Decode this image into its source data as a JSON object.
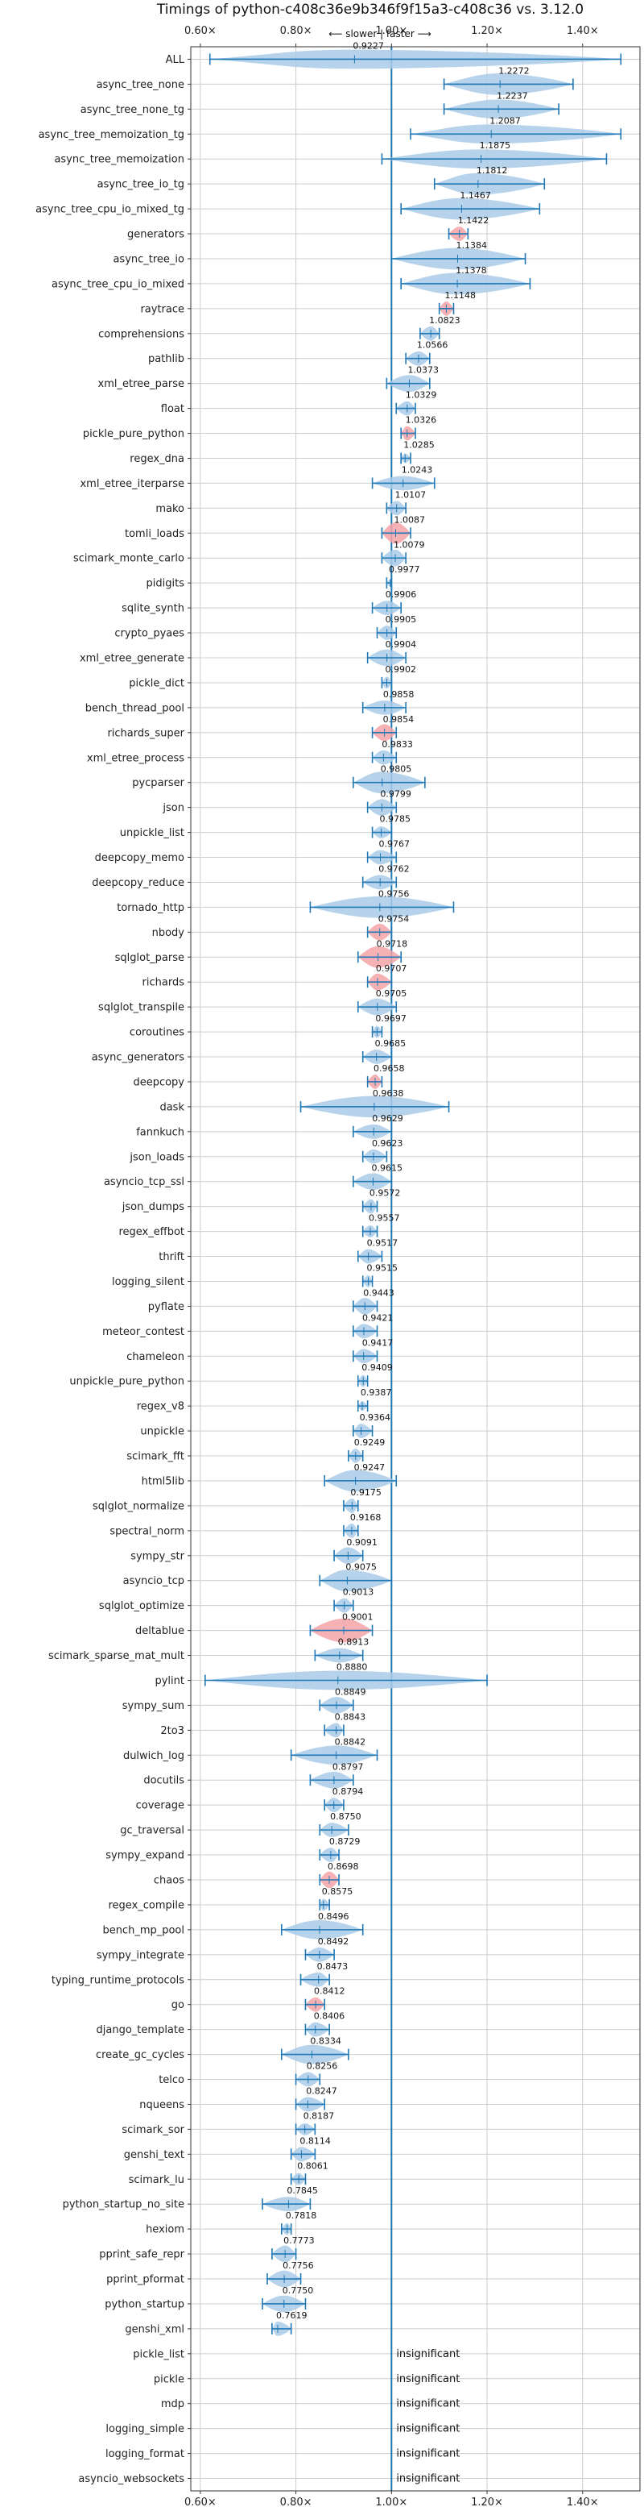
{
  "chart_data": {
    "type": "violin",
    "title": "Timings of python-c408c36e9b346f9f15a3-c408c36 vs. 3.12.0",
    "subtitle": "⟵ slower | faster ⟶",
    "x_ticks": [
      "0.60×",
      "0.80×",
      "1.00×",
      "1.20×",
      "1.40×"
    ],
    "x_tick_values": [
      0.6,
      0.8,
      1.0,
      1.2,
      1.4
    ],
    "xlim": [
      0.58,
      1.52
    ],
    "reference_line": 1.0,
    "grid": true,
    "insignificant_text": "insignificant",
    "colors": {
      "violin_normal": "#a9cbe8",
      "violin_slow": "#f4a3a8",
      "whisker": "#1f77b4",
      "refline": "#1f77b4",
      "grid": "#cccccc"
    },
    "series": [
      {
        "name": "ALL",
        "value": 0.9227,
        "label": "0.9227",
        "min": 0.62,
        "max": 1.48,
        "width": 0.8,
        "slower": false
      },
      {
        "name": "async_tree_none",
        "value": 1.2272,
        "label": "1.2272",
        "min": 1.11,
        "max": 1.38,
        "width": 0.9,
        "slower": false
      },
      {
        "name": "async_tree_none_tg",
        "value": 1.2237,
        "label": "1.2237",
        "min": 1.11,
        "max": 1.35,
        "width": 0.8,
        "slower": false
      },
      {
        "name": "async_tree_memoization_tg",
        "value": 1.2087,
        "label": "1.2087",
        "min": 1.04,
        "max": 1.48,
        "width": 0.8,
        "slower": false
      },
      {
        "name": "async_tree_memoization",
        "value": 1.1875,
        "label": "1.1875",
        "min": 0.98,
        "max": 1.45,
        "width": 0.8,
        "slower": false
      },
      {
        "name": "async_tree_io_tg",
        "value": 1.1812,
        "label": "1.1812",
        "min": 1.09,
        "max": 1.32,
        "width": 0.9,
        "slower": false
      },
      {
        "name": "async_tree_cpu_io_mixed_tg",
        "value": 1.1467,
        "label": "1.1467",
        "min": 1.02,
        "max": 1.31,
        "width": 0.9,
        "slower": false
      },
      {
        "name": "generators",
        "value": 1.1422,
        "label": "1.1422",
        "min": 1.12,
        "max": 1.16,
        "width": 0.6,
        "slower": true
      },
      {
        "name": "async_tree_io",
        "value": 1.1384,
        "label": "1.1384",
        "min": 1.0,
        "max": 1.28,
        "width": 0.9,
        "slower": false
      },
      {
        "name": "async_tree_cpu_io_mixed",
        "value": 1.1378,
        "label": "1.1378",
        "min": 1.02,
        "max": 1.29,
        "width": 0.9,
        "slower": false
      },
      {
        "name": "raytrace",
        "value": 1.1148,
        "label": "1.1148",
        "min": 1.1,
        "max": 1.13,
        "width": 0.6,
        "slower": true
      },
      {
        "name": "comprehensions",
        "value": 1.0823,
        "label": "1.0823",
        "min": 1.06,
        "max": 1.1,
        "width": 0.6,
        "slower": false
      },
      {
        "name": "pathlib",
        "value": 1.0566,
        "label": "1.0566",
        "min": 1.03,
        "max": 1.08,
        "width": 0.6,
        "slower": false
      },
      {
        "name": "xml_etree_parse",
        "value": 1.0373,
        "label": "1.0373",
        "min": 0.99,
        "max": 1.08,
        "width": 0.7,
        "slower": false
      },
      {
        "name": "float",
        "value": 1.0329,
        "label": "1.0329",
        "min": 1.01,
        "max": 1.05,
        "width": 0.6,
        "slower": false
      },
      {
        "name": "pickle_pure_python",
        "value": 1.0326,
        "label": "1.0326",
        "min": 1.02,
        "max": 1.05,
        "width": 0.6,
        "slower": true
      },
      {
        "name": "regex_dna",
        "value": 1.0285,
        "label": "1.0285",
        "min": 1.02,
        "max": 1.04,
        "width": 0.4,
        "slower": false
      },
      {
        "name": "xml_etree_iterparse",
        "value": 1.0243,
        "label": "1.0243",
        "min": 0.96,
        "max": 1.09,
        "width": 0.6,
        "slower": false
      },
      {
        "name": "mako",
        "value": 1.0107,
        "label": "1.0107",
        "min": 0.99,
        "max": 1.03,
        "width": 0.6,
        "slower": false
      },
      {
        "name": "tomli_loads",
        "value": 1.0087,
        "label": "1.0087",
        "min": 0.98,
        "max": 1.04,
        "width": 0.9,
        "slower": true
      },
      {
        "name": "scimark_monte_carlo",
        "value": 1.0079,
        "label": "1.0079",
        "min": 0.98,
        "max": 1.03,
        "width": 0.7,
        "slower": false
      },
      {
        "name": "pidigits",
        "value": 0.9977,
        "label": "0.9977",
        "min": 0.99,
        "max": 1.0,
        "width": 0.3,
        "slower": false
      },
      {
        "name": "sqlite_synth",
        "value": 0.9906,
        "label": "0.9906",
        "min": 0.96,
        "max": 1.02,
        "width": 0.6,
        "slower": false
      },
      {
        "name": "crypto_pyaes",
        "value": 0.9905,
        "label": "0.9905",
        "min": 0.97,
        "max": 1.01,
        "width": 0.6,
        "slower": false
      },
      {
        "name": "xml_etree_generate",
        "value": 0.9904,
        "label": "0.9904",
        "min": 0.95,
        "max": 1.03,
        "width": 0.7,
        "slower": false
      },
      {
        "name": "pickle_dict",
        "value": 0.9902,
        "label": "0.9902",
        "min": 0.98,
        "max": 1.0,
        "width": 0.5,
        "slower": false
      },
      {
        "name": "bench_thread_pool",
        "value": 0.9858,
        "label": "0.9858",
        "min": 0.94,
        "max": 1.03,
        "width": 0.6,
        "slower": false
      },
      {
        "name": "richards_super",
        "value": 0.9854,
        "label": "0.9854",
        "min": 0.96,
        "max": 1.01,
        "width": 0.7,
        "slower": true
      },
      {
        "name": "xml_etree_process",
        "value": 0.9833,
        "label": "0.9833",
        "min": 0.96,
        "max": 1.01,
        "width": 0.6,
        "slower": false
      },
      {
        "name": "pycparser",
        "value": 0.9805,
        "label": "0.9805",
        "min": 0.92,
        "max": 1.07,
        "width": 0.9,
        "slower": false
      },
      {
        "name": "json",
        "value": 0.9799,
        "label": "0.9799",
        "min": 0.95,
        "max": 1.01,
        "width": 0.7,
        "slower": false
      },
      {
        "name": "unpickle_list",
        "value": 0.9785,
        "label": "0.9785",
        "min": 0.96,
        "max": 1.0,
        "width": 0.5,
        "slower": false
      },
      {
        "name": "deepcopy_memo",
        "value": 0.9767,
        "label": "0.9767",
        "min": 0.95,
        "max": 1.01,
        "width": 0.6,
        "slower": false
      },
      {
        "name": "deepcopy_reduce",
        "value": 0.9762,
        "label": "0.9762",
        "min": 0.94,
        "max": 1.01,
        "width": 0.6,
        "slower": false
      },
      {
        "name": "tornado_http",
        "value": 0.9756,
        "label": "0.9756",
        "min": 0.83,
        "max": 1.13,
        "width": 0.9,
        "slower": false
      },
      {
        "name": "nbody",
        "value": 0.9754,
        "label": "0.9754",
        "min": 0.95,
        "max": 1.0,
        "width": 0.7,
        "slower": true
      },
      {
        "name": "sqlglot_parse",
        "value": 0.9718,
        "label": "0.9718",
        "min": 0.93,
        "max": 1.02,
        "width": 0.9,
        "slower": true
      },
      {
        "name": "richards",
        "value": 0.9707,
        "label": "0.9707",
        "min": 0.95,
        "max": 1.0,
        "width": 0.7,
        "slower": true
      },
      {
        "name": "sqlglot_transpile",
        "value": 0.9705,
        "label": "0.9705",
        "min": 0.93,
        "max": 1.01,
        "width": 0.7,
        "slower": false
      },
      {
        "name": "coroutines",
        "value": 0.9697,
        "label": "0.9697",
        "min": 0.96,
        "max": 0.98,
        "width": 0.5,
        "slower": false
      },
      {
        "name": "async_generators",
        "value": 0.9685,
        "label": "0.9685",
        "min": 0.94,
        "max": 1.0,
        "width": 0.6,
        "slower": false
      },
      {
        "name": "deepcopy",
        "value": 0.9658,
        "label": "0.9658",
        "min": 0.95,
        "max": 0.98,
        "width": 0.6,
        "slower": true
      },
      {
        "name": "dask",
        "value": 0.9638,
        "label": "0.9638",
        "min": 0.81,
        "max": 1.12,
        "width": 0.9,
        "slower": false
      },
      {
        "name": "fannkuch",
        "value": 0.9629,
        "label": "0.9629",
        "min": 0.92,
        "max": 1.0,
        "width": 0.6,
        "slower": false
      },
      {
        "name": "json_loads",
        "value": 0.9623,
        "label": "0.9623",
        "min": 0.94,
        "max": 0.99,
        "width": 0.6,
        "slower": false
      },
      {
        "name": "asyncio_tcp_ssl",
        "value": 0.9615,
        "label": "0.9615",
        "min": 0.92,
        "max": 1.0,
        "width": 0.7,
        "slower": false
      },
      {
        "name": "json_dumps",
        "value": 0.9572,
        "label": "0.9572",
        "min": 0.94,
        "max": 0.97,
        "width": 0.6,
        "slower": false
      },
      {
        "name": "regex_effbot",
        "value": 0.9557,
        "label": "0.9557",
        "min": 0.94,
        "max": 0.97,
        "width": 0.5,
        "slower": false
      },
      {
        "name": "thrift",
        "value": 0.9517,
        "label": "0.9517",
        "min": 0.93,
        "max": 0.98,
        "width": 0.6,
        "slower": false
      },
      {
        "name": "logging_silent",
        "value": 0.9515,
        "label": "0.9515",
        "min": 0.94,
        "max": 0.96,
        "width": 0.5,
        "slower": false
      },
      {
        "name": "pyflate",
        "value": 0.9443,
        "label": "0.9443",
        "min": 0.92,
        "max": 0.97,
        "width": 0.7,
        "slower": false
      },
      {
        "name": "meteor_contest",
        "value": 0.9421,
        "label": "0.9421",
        "min": 0.92,
        "max": 0.97,
        "width": 0.6,
        "slower": false
      },
      {
        "name": "chameleon",
        "value": 0.9417,
        "label": "0.9417",
        "min": 0.92,
        "max": 0.97,
        "width": 0.6,
        "slower": false
      },
      {
        "name": "unpickle_pure_python",
        "value": 0.9409,
        "label": "0.9409",
        "min": 0.93,
        "max": 0.95,
        "width": 0.5,
        "slower": false
      },
      {
        "name": "regex_v8",
        "value": 0.9387,
        "label": "0.9387",
        "min": 0.93,
        "max": 0.95,
        "width": 0.4,
        "slower": false
      },
      {
        "name": "unpickle",
        "value": 0.9364,
        "label": "0.9364",
        "min": 0.92,
        "max": 0.96,
        "width": 0.6,
        "slower": false
      },
      {
        "name": "scimark_fft",
        "value": 0.9249,
        "label": "0.9249",
        "min": 0.91,
        "max": 0.94,
        "width": 0.6,
        "slower": false
      },
      {
        "name": "html5lib",
        "value": 0.9247,
        "label": "0.9247",
        "min": 0.86,
        "max": 1.01,
        "width": 0.9,
        "slower": false
      },
      {
        "name": "sqlglot_normalize",
        "value": 0.9175,
        "label": "0.9175",
        "min": 0.9,
        "max": 0.93,
        "width": 0.6,
        "slower": false
      },
      {
        "name": "spectral_norm",
        "value": 0.9168,
        "label": "0.9168",
        "min": 0.9,
        "max": 0.93,
        "width": 0.6,
        "slower": false
      },
      {
        "name": "sympy_str",
        "value": 0.9091,
        "label": "0.9091",
        "min": 0.88,
        "max": 0.94,
        "width": 0.7,
        "slower": false
      },
      {
        "name": "asyncio_tcp",
        "value": 0.9075,
        "label": "0.9075",
        "min": 0.85,
        "max": 1.0,
        "width": 0.9,
        "slower": false
      },
      {
        "name": "sqlglot_optimize",
        "value": 0.9013,
        "label": "0.9013",
        "min": 0.88,
        "max": 0.92,
        "width": 0.6,
        "slower": false
      },
      {
        "name": "deltablue",
        "value": 0.9001,
        "label": "0.9001",
        "min": 0.83,
        "max": 0.96,
        "width": 1.0,
        "slower": true
      },
      {
        "name": "scimark_sparse_mat_mult",
        "value": 0.8913,
        "label": "0.8913",
        "min": 0.84,
        "max": 0.94,
        "width": 0.6,
        "slower": false
      },
      {
        "name": "pylint",
        "value": 0.888,
        "label": "0.8880",
        "min": 0.61,
        "max": 1.2,
        "width": 0.8,
        "slower": false
      },
      {
        "name": "sympy_sum",
        "value": 0.8849,
        "label": "0.8849",
        "min": 0.85,
        "max": 0.92,
        "width": 0.7,
        "slower": false
      },
      {
        "name": "2to3",
        "value": 0.8843,
        "label": "0.8843",
        "min": 0.86,
        "max": 0.9,
        "width": 0.6,
        "slower": false
      },
      {
        "name": "dulwich_log",
        "value": 0.8842,
        "label": "0.8842",
        "min": 0.79,
        "max": 0.97,
        "width": 0.8,
        "slower": false
      },
      {
        "name": "docutils",
        "value": 0.8797,
        "label": "0.8797",
        "min": 0.83,
        "max": 0.92,
        "width": 0.7,
        "slower": false
      },
      {
        "name": "coverage",
        "value": 0.8794,
        "label": "0.8794",
        "min": 0.86,
        "max": 0.9,
        "width": 0.6,
        "slower": false
      },
      {
        "name": "gc_traversal",
        "value": 0.875,
        "label": "0.8750",
        "min": 0.85,
        "max": 0.91,
        "width": 0.6,
        "slower": false
      },
      {
        "name": "sympy_expand",
        "value": 0.8729,
        "label": "0.8729",
        "min": 0.85,
        "max": 0.89,
        "width": 0.6,
        "slower": false
      },
      {
        "name": "chaos",
        "value": 0.8698,
        "label": "0.8698",
        "min": 0.85,
        "max": 0.89,
        "width": 0.7,
        "slower": true
      },
      {
        "name": "regex_compile",
        "value": 0.8575,
        "label": "0.8575",
        "min": 0.85,
        "max": 0.87,
        "width": 0.5,
        "slower": false
      },
      {
        "name": "bench_mp_pool",
        "value": 0.8496,
        "label": "0.8496",
        "min": 0.77,
        "max": 0.94,
        "width": 0.8,
        "slower": false
      },
      {
        "name": "sympy_integrate",
        "value": 0.8492,
        "label": "0.8492",
        "min": 0.82,
        "max": 0.88,
        "width": 0.6,
        "slower": false
      },
      {
        "name": "typing_runtime_protocols",
        "value": 0.8473,
        "label": "0.8473",
        "min": 0.81,
        "max": 0.87,
        "width": 0.6,
        "slower": false
      },
      {
        "name": "go",
        "value": 0.8412,
        "label": "0.8412",
        "min": 0.82,
        "max": 0.86,
        "width": 0.6,
        "slower": true
      },
      {
        "name": "django_template",
        "value": 0.8406,
        "label": "0.8406",
        "min": 0.82,
        "max": 0.87,
        "width": 0.6,
        "slower": false
      },
      {
        "name": "create_gc_cycles",
        "value": 0.8334,
        "label": "0.8334",
        "min": 0.77,
        "max": 0.91,
        "width": 0.8,
        "slower": false
      },
      {
        "name": "telco",
        "value": 0.8256,
        "label": "0.8256",
        "min": 0.8,
        "max": 0.85,
        "width": 0.6,
        "slower": false
      },
      {
        "name": "nqueens",
        "value": 0.8247,
        "label": "0.8247",
        "min": 0.8,
        "max": 0.86,
        "width": 0.6,
        "slower": false
      },
      {
        "name": "scimark_sor",
        "value": 0.8187,
        "label": "0.8187",
        "min": 0.8,
        "max": 0.84,
        "width": 0.5,
        "slower": false
      },
      {
        "name": "genshi_text",
        "value": 0.8114,
        "label": "0.8114",
        "min": 0.79,
        "max": 0.84,
        "width": 0.6,
        "slower": false
      },
      {
        "name": "scimark_lu",
        "value": 0.8061,
        "label": "0.8061",
        "min": 0.79,
        "max": 0.82,
        "width": 0.5,
        "slower": false
      },
      {
        "name": "python_startup_no_site",
        "value": 0.7845,
        "label": "0.7845",
        "min": 0.73,
        "max": 0.83,
        "width": 0.6,
        "slower": false
      },
      {
        "name": "hexiom",
        "value": 0.7818,
        "label": "0.7818",
        "min": 0.77,
        "max": 0.79,
        "width": 0.5,
        "slower": false
      },
      {
        "name": "pprint_safe_repr",
        "value": 0.7773,
        "label": "0.7773",
        "min": 0.75,
        "max": 0.8,
        "width": 0.7,
        "slower": false
      },
      {
        "name": "pprint_pformat",
        "value": 0.7756,
        "label": "0.7756",
        "min": 0.74,
        "max": 0.81,
        "width": 0.7,
        "slower": false
      },
      {
        "name": "python_startup",
        "value": 0.775,
        "label": "0.7750",
        "min": 0.73,
        "max": 0.82,
        "width": 0.7,
        "slower": false
      },
      {
        "name": "genshi_xml",
        "value": 0.7619,
        "label": "0.7619",
        "min": 0.75,
        "max": 0.79,
        "width": 0.6,
        "slower": false
      },
      {
        "name": "pickle_list",
        "insignificant": true
      },
      {
        "name": "pickle",
        "insignificant": true
      },
      {
        "name": "mdp",
        "insignificant": true
      },
      {
        "name": "logging_simple",
        "insignificant": true
      },
      {
        "name": "logging_format",
        "insignificant": true
      },
      {
        "name": "asyncio_websockets",
        "insignificant": true
      }
    ]
  }
}
